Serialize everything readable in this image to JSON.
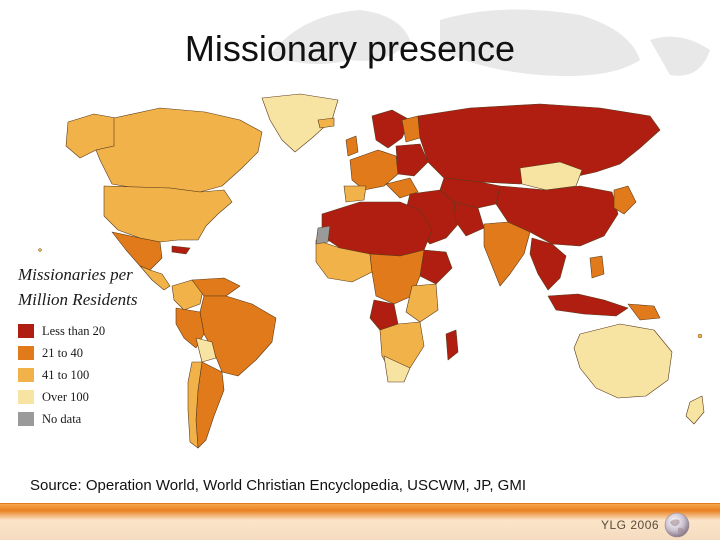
{
  "slide": {
    "title": "Missionary presence",
    "source": "Source:  Operation World, World Christian Encyclopedia, USCWM, JP, GMI",
    "brand": "YLG 2006"
  },
  "legend": {
    "title_line1": "Missionaries per",
    "title_line2": "Million Residents",
    "items": [
      {
        "label": "Less than 20",
        "color": "#b01e12"
      },
      {
        "label": "21 to 40",
        "color": "#e07a1a"
      },
      {
        "label": "41 to 100",
        "color": "#f2b24a"
      },
      {
        "label": "Over 100",
        "color": "#f7e3a2"
      },
      {
        "label": "No data",
        "color": "#9a9a9a"
      }
    ]
  },
  "map": {
    "background": "#ffffff",
    "border_color": "#5a3a1a"
  }
}
